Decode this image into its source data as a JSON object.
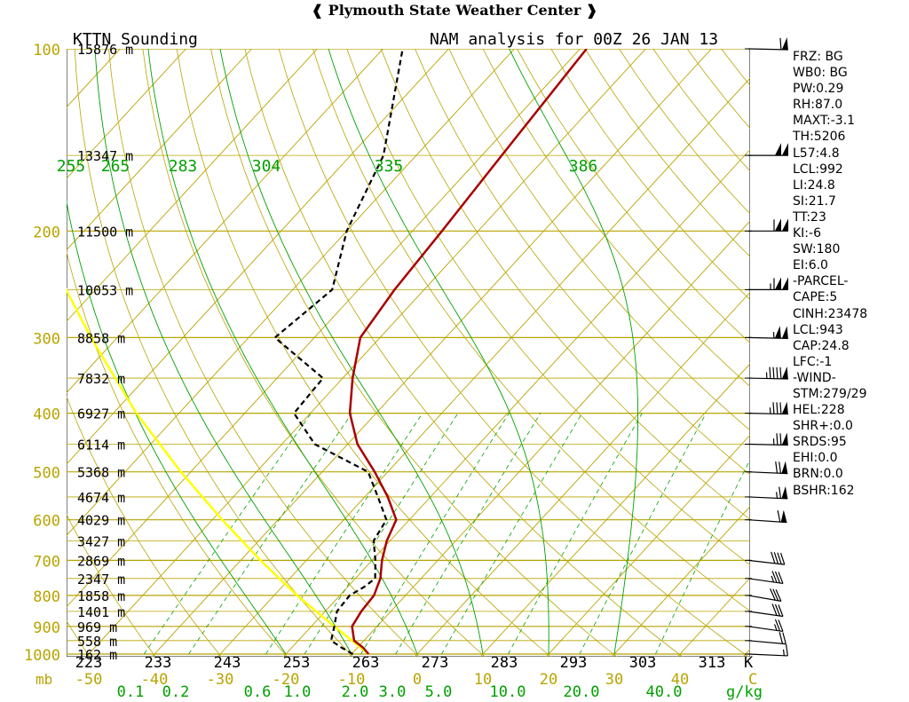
{
  "header": {
    "title": "Plymouth State Weather Center"
  },
  "chart_data": {
    "type": "skew-t",
    "title_left": "KTTN Sounding",
    "title_right": "NAM analysis for 00Z 26 JAN 13",
    "pressure_labels_mb": [
      "100",
      "200",
      "300",
      "400",
      "500",
      "600",
      "700",
      "800",
      "900",
      "1000"
    ],
    "pressure_unit": "mb",
    "height_labels": [
      {
        "p": 100,
        "label": "15876 m"
      },
      {
        "p": 150,
        "label": "13347 m"
      },
      {
        "p": 200,
        "label": "11500 m"
      },
      {
        "p": 250,
        "label": "10053 m"
      },
      {
        "p": 300,
        "label": "8858 m"
      },
      {
        "p": 350,
        "label": "7832 m"
      },
      {
        "p": 400,
        "label": "6927 m"
      },
      {
        "p": 450,
        "label": "6114 m"
      },
      {
        "p": 500,
        "label": "5368 m"
      },
      {
        "p": 550,
        "label": "4674 m"
      },
      {
        "p": 600,
        "label": "4029 m"
      },
      {
        "p": 650,
        "label": "3427 m"
      },
      {
        "p": 700,
        "label": "2869 m"
      },
      {
        "p": 750,
        "label": "2347 m"
      },
      {
        "p": 800,
        "label": "1858 m"
      },
      {
        "p": 850,
        "label": "1401 m"
      },
      {
        "p": 900,
        "label": "969 m"
      },
      {
        "p": 950,
        "label": "558 m"
      },
      {
        "p": 1000,
        "label": "162 m"
      }
    ],
    "temperature_ticks_c": [
      "-50",
      "-40",
      "-30",
      "-20",
      "-10",
      "0",
      "10",
      "20",
      "30",
      "40"
    ],
    "temperature_unit": "C",
    "theta_ticks_k": [
      "223",
      "233",
      "243",
      "253",
      "263",
      "273",
      "283",
      "293",
      "303",
      "313"
    ],
    "theta_unit": "K",
    "thetae_labels": [
      "255",
      "265",
      "283",
      "304",
      "335",
      "386"
    ],
    "mixing_ratio_labels": [
      "0.1",
      "0.2",
      "0.6",
      "1.0",
      "2.0",
      "3.0",
      "5.0",
      "10.0",
      "20.0",
      "40.0"
    ],
    "mixing_ratio_unit": "g/kg",
    "temperature_profile": [
      {
        "p": 1000,
        "t": -7.4
      },
      {
        "p": 975,
        "t": -9.2
      },
      {
        "p": 950,
        "t": -11.5
      },
      {
        "p": 900,
        "t": -13.8
      },
      {
        "p": 850,
        "t": -14.5
      },
      {
        "p": 800,
        "t": -14.8
      },
      {
        "p": 775,
        "t": -15.5
      },
      {
        "p": 750,
        "t": -16.2
      },
      {
        "p": 700,
        "t": -18.5
      },
      {
        "p": 650,
        "t": -20.5
      },
      {
        "p": 600,
        "t": -22.0
      },
      {
        "p": 550,
        "t": -26.5
      },
      {
        "p": 500,
        "t": -32.0
      },
      {
        "p": 450,
        "t": -38.5
      },
      {
        "p": 400,
        "t": -44.0
      },
      {
        "p": 350,
        "t": -48.5
      },
      {
        "p": 300,
        "t": -53.0
      },
      {
        "p": 250,
        "t": -54.5
      },
      {
        "p": 200,
        "t": -55.5
      },
      {
        "p": 150,
        "t": -57.0
      },
      {
        "p": 100,
        "t": -59.0
      }
    ],
    "dewpoint_profile": [
      {
        "p": 1000,
        "t": -9.8
      },
      {
        "p": 975,
        "t": -12.5
      },
      {
        "p": 950,
        "t": -15.0
      },
      {
        "p": 900,
        "t": -16.5
      },
      {
        "p": 850,
        "t": -18.2
      },
      {
        "p": 800,
        "t": -18.5
      },
      {
        "p": 775,
        "t": -17.5
      },
      {
        "p": 750,
        "t": -17.0
      },
      {
        "p": 700,
        "t": -19.5
      },
      {
        "p": 650,
        "t": -22.5
      },
      {
        "p": 600,
        "t": -23.5
      },
      {
        "p": 550,
        "t": -28.0
      },
      {
        "p": 500,
        "t": -33.0
      },
      {
        "p": 450,
        "t": -45.0
      },
      {
        "p": 400,
        "t": -52.5
      },
      {
        "p": 350,
        "t": -53.0
      },
      {
        "p": 300,
        "t": -66.0
      },
      {
        "p": 250,
        "t": -64.0
      },
      {
        "p": 200,
        "t": -70.0
      },
      {
        "p": 150,
        "t": -75.0
      },
      {
        "p": 100,
        "t": -87.0
      }
    ],
    "parcel_profile": [
      {
        "p": 1000,
        "t": -7.4
      },
      {
        "p": 900,
        "t": -16.5
      },
      {
        "p": 800,
        "t": -26.5
      },
      {
        "p": 700,
        "t": -37.0
      },
      {
        "p": 600,
        "t": -48.5
      },
      {
        "p": 500,
        "t": -61.5
      },
      {
        "p": 400,
        "t": -76.5
      },
      {
        "p": 300,
        "t": -94.0
      },
      {
        "p": 250,
        "t": -104.5
      },
      {
        "p": 200,
        "t": -116.0
      },
      {
        "p": 150,
        "t": -130.0
      },
      {
        "p": 125,
        "t": -138.0
      }
    ],
    "wind_barbs": [
      {
        "p": 1000,
        "dir": 280,
        "spd": 15
      },
      {
        "p": 950,
        "dir": 290,
        "spd": 20
      },
      {
        "p": 900,
        "dir": 300,
        "spd": 25
      },
      {
        "p": 850,
        "dir": 300,
        "spd": 30
      },
      {
        "p": 800,
        "dir": 305,
        "spd": 30
      },
      {
        "p": 750,
        "dir": 300,
        "spd": 35
      },
      {
        "p": 700,
        "dir": 295,
        "spd": 40
      },
      {
        "p": 600,
        "dir": 285,
        "spd": 60
      },
      {
        "p": 550,
        "dir": 280,
        "spd": 65
      },
      {
        "p": 500,
        "dir": 280,
        "spd": 70
      },
      {
        "p": 450,
        "dir": 275,
        "spd": 75
      },
      {
        "p": 400,
        "dir": 275,
        "spd": 85
      },
      {
        "p": 350,
        "dir": 275,
        "spd": 95
      },
      {
        "p": 300,
        "dir": 275,
        "spd": 105
      },
      {
        "p": 250,
        "dir": 270,
        "spd": 115
      },
      {
        "p": 200,
        "dir": 270,
        "spd": 110
      },
      {
        "p": 150,
        "dir": 270,
        "spd": 100
      },
      {
        "p": 100,
        "dir": 275,
        "spd": 60
      }
    ],
    "colors": {
      "grid": "#b8a400",
      "temperature": "#a80000",
      "dewpoint": "#000000",
      "parcel": "#ffff00",
      "adiabat": "#00a000",
      "mixing_ratio": "#00a000",
      "pressure_label": "#b8a400",
      "thetae_label": "#00a000"
    }
  },
  "indices": [
    "FRZ: BG",
    "WB0: BG",
    "PW:0.29",
    "RH:87.0",
    "MAXT:-3.1",
    "TH:5206",
    "L57:4.8",
    "LCL:992",
    "LI:24.8",
    "SI:21.7",
    "TT:23",
    "KI:-6",
    "SW:180",
    "EI:6.0",
    "-PARCEL-",
    "CAPE:5",
    "CINH:23478",
    "LCL:943",
    "CAP:24.8",
    "LFC:-1",
    "-WIND-",
    "STM:279/29",
    "HEL:228",
    "SHR+:0.0",
    "SRDS:95",
    "EHI:0.0",
    "BRN:0.0",
    "BSHR:162"
  ]
}
